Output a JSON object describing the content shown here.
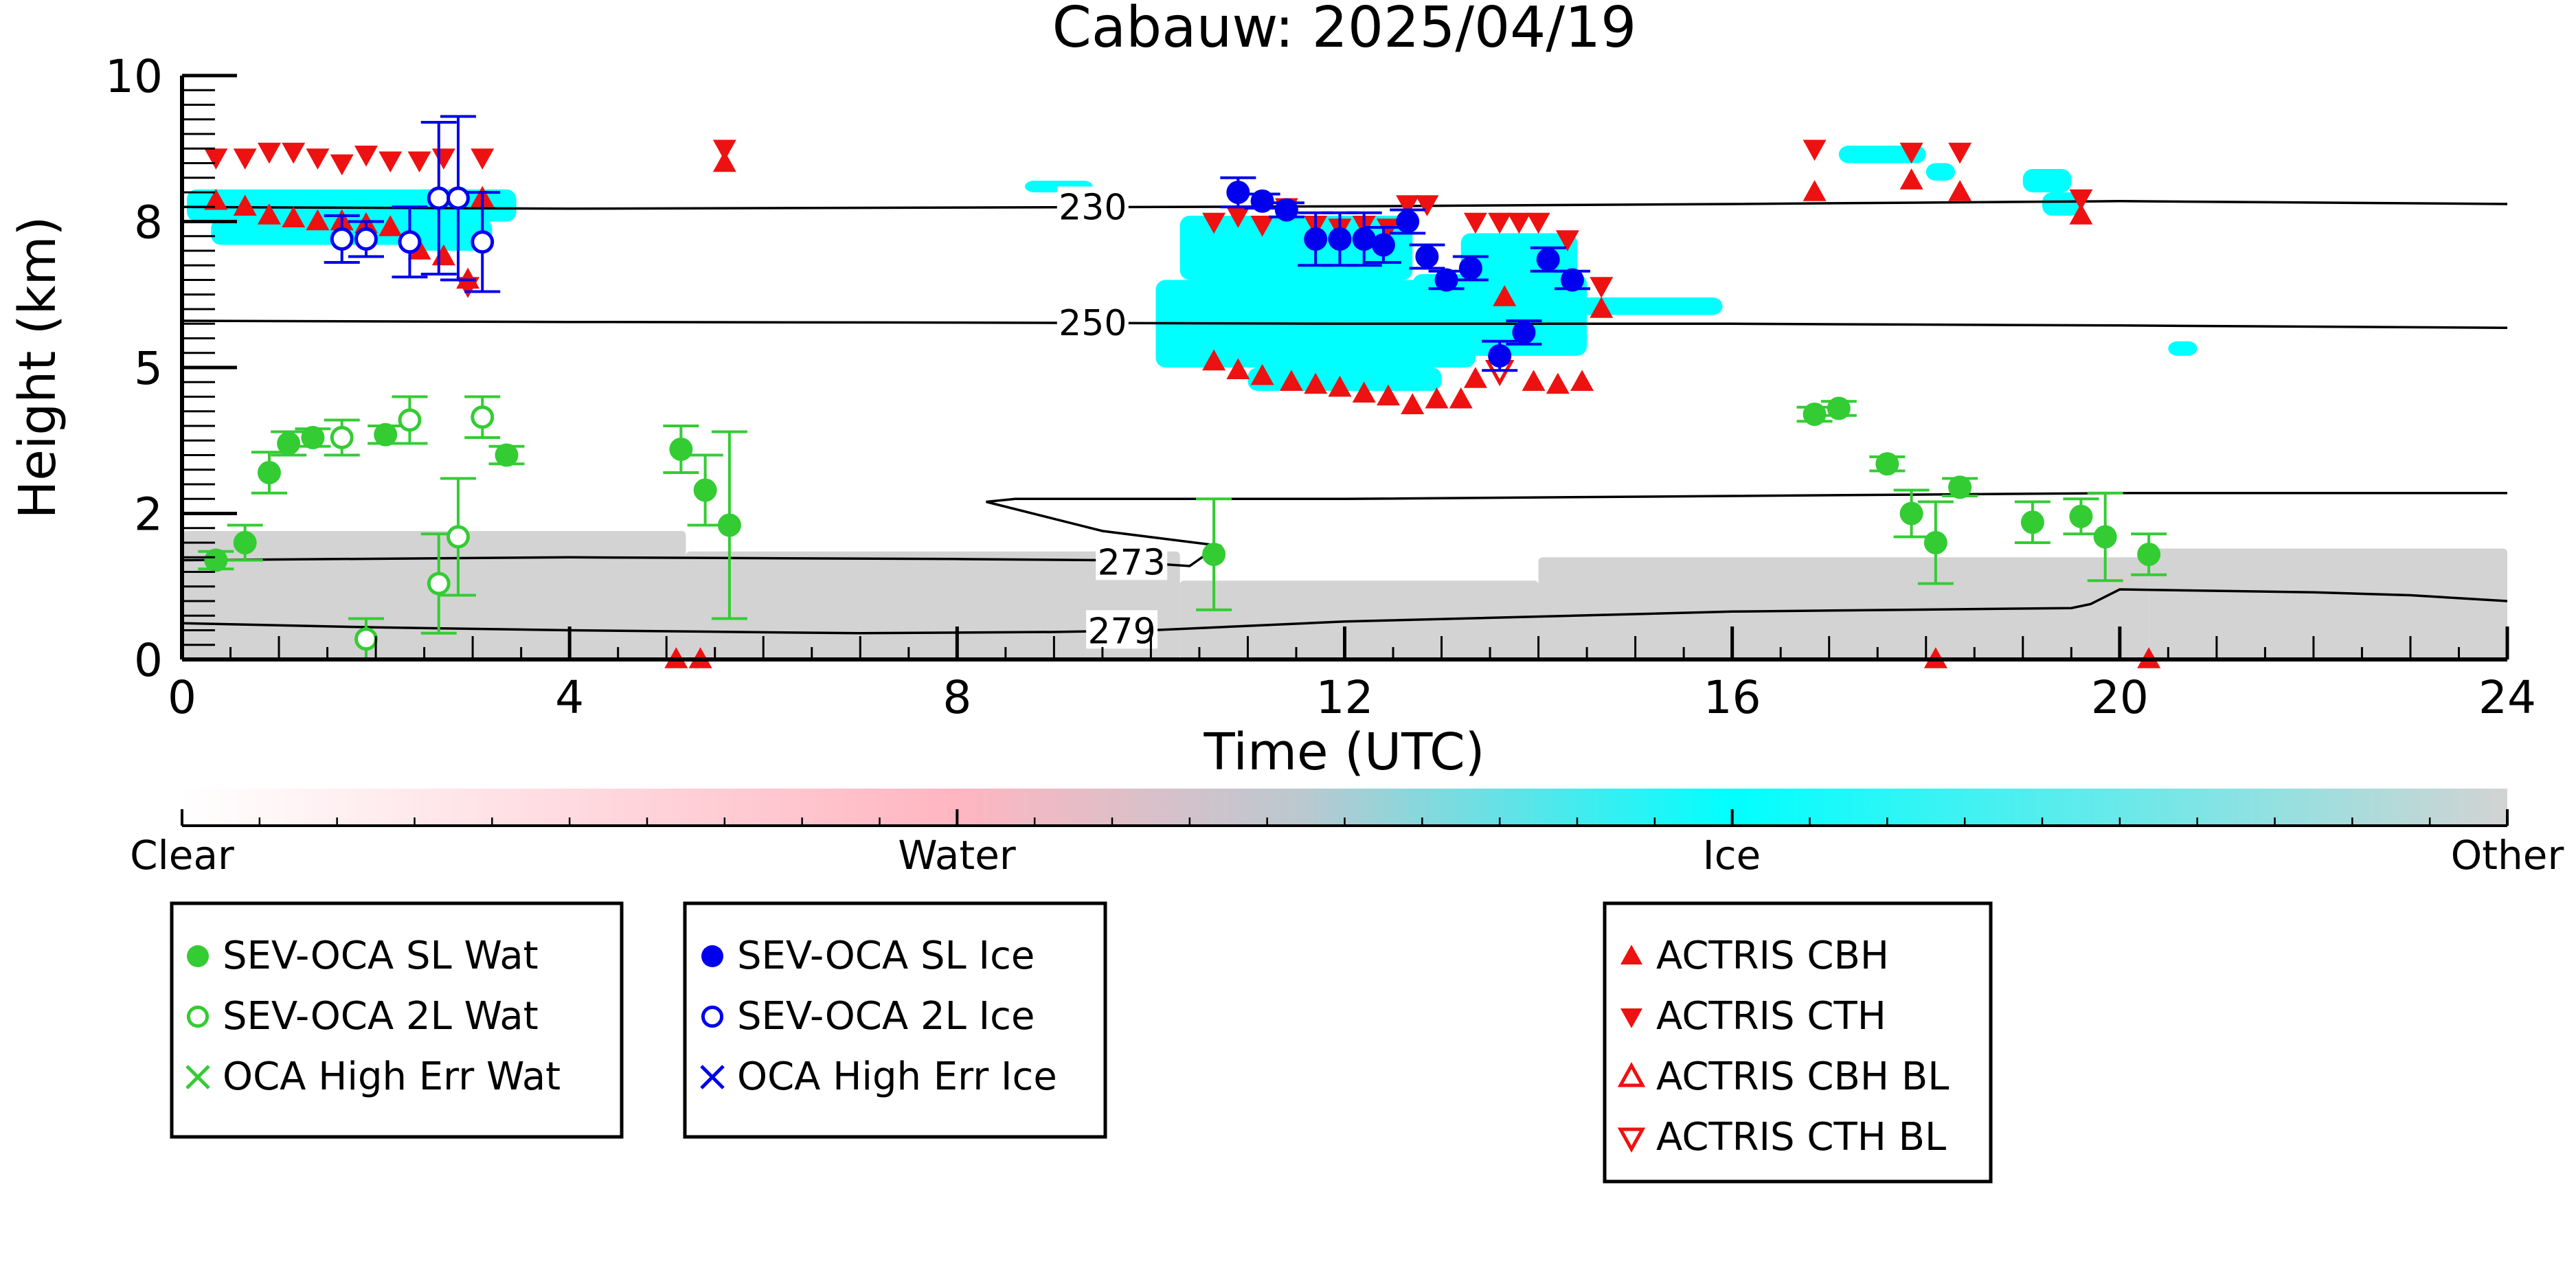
{
  "chart_data": {
    "type": "scatter",
    "title": "Cabauw: 2025/04/19",
    "xlabel": "Time (UTC)",
    "ylabel": "Height (km)",
    "xlim": [
      0,
      24
    ],
    "ylim": [
      0,
      10
    ],
    "x_ticks": [
      0,
      4,
      8,
      12,
      16,
      20,
      24
    ],
    "y_ticks": [
      {
        "label": "0",
        "value": 0
      },
      {
        "label": "2",
        "value": 2.5
      },
      {
        "label": "5",
        "value": 5
      },
      {
        "label": "8",
        "value": 7.5
      },
      {
        "label": "10",
        "value": 10
      }
    ],
    "colorbar": {
      "labels": [
        "Clear",
        "Water",
        "Ice",
        "Other"
      ],
      "colors": [
        "#ffffff",
        "#ffb6c1",
        "#00ffff",
        "#d3d3d3"
      ]
    },
    "colors": {
      "water": "#33cc33",
      "ice": "#0000ee",
      "actris": "#ee1111",
      "cloud_ice": "#00ffff",
      "cloud_other": "#d3d3d3"
    },
    "contours": [
      {
        "label": "230",
        "label_x": 9.4,
        "points": [
          [
            0,
            7.75
          ],
          [
            4,
            7.72
          ],
          [
            8,
            7.74
          ],
          [
            12,
            7.76
          ],
          [
            16,
            7.8
          ],
          [
            20,
            7.85
          ],
          [
            24,
            7.8
          ]
        ]
      },
      {
        "label": "250",
        "label_x": 9.4,
        "points": [
          [
            0,
            5.8
          ],
          [
            4,
            5.78
          ],
          [
            8,
            5.77
          ],
          [
            12,
            5.75
          ],
          [
            16,
            5.75
          ],
          [
            20,
            5.72
          ],
          [
            24,
            5.68
          ]
        ]
      },
      {
        "label": "273",
        "label_x": 9.8,
        "points": [
          [
            0,
            1.7
          ],
          [
            4,
            1.75
          ],
          [
            8,
            1.72
          ],
          [
            9.5,
            1.7
          ],
          [
            10.4,
            1.6
          ],
          [
            10.7,
            1.95
          ],
          [
            9.5,
            2.2
          ],
          [
            8.3,
            2.7
          ],
          [
            8.6,
            2.75
          ],
          [
            12,
            2.75
          ],
          [
            16,
            2.8
          ],
          [
            20,
            2.85
          ],
          [
            24,
            2.85
          ]
        ]
      },
      {
        "label": "279",
        "label_x": 9.7,
        "points": [
          [
            0,
            0.62
          ],
          [
            2,
            0.55
          ],
          [
            4,
            0.5
          ],
          [
            7,
            0.45
          ],
          [
            9,
            0.47
          ],
          [
            10,
            0.5
          ],
          [
            12,
            0.65
          ],
          [
            16,
            0.82
          ],
          [
            19.5,
            0.88
          ],
          [
            19.7,
            0.95
          ],
          [
            20,
            1.2
          ],
          [
            22,
            1.15
          ],
          [
            23,
            1.1
          ],
          [
            24,
            1.0
          ]
        ]
      }
    ],
    "ice_regions": [
      {
        "x": 0.05,
        "y": 7.5,
        "w": 3.4,
        "h": 0.55
      },
      {
        "x": 0.3,
        "y": 7.1,
        "w": 2.9,
        "h": 0.45
      },
      {
        "x": 2.4,
        "y": 7.0,
        "w": 0.7,
        "h": 0.5
      },
      {
        "x": 10.3,
        "y": 6.5,
        "w": 2.4,
        "h": 1.1
      },
      {
        "x": 10.05,
        "y": 5.0,
        "w": 3.3,
        "h": 1.5
      },
      {
        "x": 11.0,
        "y": 4.6,
        "w": 2.0,
        "h": 0.4
      },
      {
        "x": 12.7,
        "y": 5.2,
        "w": 1.8,
        "h": 1.4
      },
      {
        "x": 13.2,
        "y": 6.5,
        "w": 1.2,
        "h": 0.8
      },
      {
        "x": 14.3,
        "y": 5.9,
        "w": 1.6,
        "h": 0.3
      },
      {
        "x": 17.1,
        "y": 8.5,
        "w": 0.9,
        "h": 0.3
      },
      {
        "x": 18.0,
        "y": 8.2,
        "w": 0.3,
        "h": 0.3
      },
      {
        "x": 19.0,
        "y": 8.0,
        "w": 0.5,
        "h": 0.4
      },
      {
        "x": 19.2,
        "y": 7.6,
        "w": 0.4,
        "h": 0.4
      },
      {
        "x": 8.7,
        "y": 8.0,
        "w": 0.7,
        "h": 0.2
      },
      {
        "x": 20.5,
        "y": 5.2,
        "w": 0.3,
        "h": 0.25
      }
    ],
    "other_regions": [
      {
        "x": 0.0,
        "y": 0.0,
        "w": 5.2,
        "h": 2.2
      },
      {
        "x": 5.2,
        "y": 0.0,
        "w": 5.1,
        "h": 1.85
      },
      {
        "x": 10.3,
        "y": 0.0,
        "w": 3.7,
        "h": 1.35
      },
      {
        "x": 14.0,
        "y": 0.0,
        "w": 6.3,
        "h": 1.75
      },
      {
        "x": 20.3,
        "y": 0.0,
        "w": 3.7,
        "h": 1.9
      }
    ],
    "series": [
      {
        "name": "SEV-OCA SL Wat",
        "marker": "filled-circle",
        "color": "#33cc33",
        "points": [
          [
            0.35,
            1.7,
            0.15
          ],
          [
            0.65,
            2.0,
            0.3
          ],
          [
            0.9,
            3.2,
            0.35
          ],
          [
            1.1,
            3.7,
            0.2
          ],
          [
            1.35,
            3.8,
            0.15
          ],
          [
            2.1,
            3.85,
            0.15
          ],
          [
            3.35,
            3.5,
            0.15
          ],
          [
            5.15,
            3.6,
            0.4
          ],
          [
            5.4,
            2.9,
            0.6
          ],
          [
            5.65,
            2.3,
            1.6
          ],
          [
            10.65,
            1.8,
            0.95
          ],
          [
            16.85,
            4.2,
            0.12
          ],
          [
            17.1,
            4.3,
            0.12
          ],
          [
            17.6,
            3.35,
            0.12
          ],
          [
            17.85,
            2.5,
            0.4
          ],
          [
            18.1,
            2.0,
            0.7
          ],
          [
            18.35,
            2.95,
            0.15
          ],
          [
            19.1,
            2.35,
            0.35
          ],
          [
            19.6,
            2.45,
            0.3
          ],
          [
            19.85,
            2.1,
            0.75
          ],
          [
            20.3,
            1.8,
            0.35
          ]
        ]
      },
      {
        "name": "SEV-OCA 2L Wat",
        "marker": "open-circle",
        "color": "#33cc33",
        "points": [
          [
            1.65,
            3.8,
            0.3
          ],
          [
            1.9,
            0.35,
            0.35
          ],
          [
            2.35,
            4.1,
            0.4
          ],
          [
            2.65,
            1.3,
            0.85
          ],
          [
            2.85,
            2.1,
            1.0
          ],
          [
            3.1,
            4.15,
            0.35
          ]
        ]
      },
      {
        "name": "OCA High Err Wat",
        "marker": "cross",
        "color": "#33cc33",
        "points": []
      },
      {
        "name": "SEV-OCA SL Ice",
        "marker": "filled-circle",
        "color": "#0000ee",
        "points": [
          [
            10.9,
            8.0,
            0.25
          ],
          [
            11.15,
            7.85,
            0.12
          ],
          [
            11.4,
            7.7,
            0.12
          ],
          [
            11.7,
            7.2,
            0.45
          ],
          [
            11.95,
            7.2,
            0.45
          ],
          [
            12.2,
            7.2,
            0.45
          ],
          [
            12.4,
            7.1,
            0.3
          ],
          [
            12.65,
            7.5,
            0.2
          ],
          [
            12.85,
            6.9,
            0.2
          ],
          [
            13.05,
            6.5,
            0.15
          ],
          [
            13.3,
            6.7,
            0.2
          ],
          [
            13.6,
            5.2,
            0.25
          ],
          [
            13.85,
            5.6,
            0.2
          ],
          [
            14.1,
            6.85,
            0.2
          ],
          [
            14.35,
            6.5,
            0.15
          ]
        ]
      },
      {
        "name": "SEV-OCA 2L Ice",
        "marker": "open-circle",
        "color": "#0000ee",
        "points": [
          [
            1.65,
            7.2,
            0.4
          ],
          [
            1.9,
            7.2,
            0.3
          ],
          [
            2.35,
            7.15,
            0.6
          ],
          [
            2.65,
            7.9,
            1.3
          ],
          [
            2.85,
            7.9,
            1.4
          ],
          [
            3.1,
            7.15,
            0.85
          ]
        ]
      },
      {
        "name": "OCA High Err Ice",
        "marker": "cross",
        "color": "#0000ee",
        "points": []
      }
    ],
    "actris": [
      {
        "name": "ACTRIS CBH",
        "marker": "triangle-up",
        "color": "#ee1111",
        "points": [
          [
            0.35,
            7.85
          ],
          [
            0.65,
            7.75
          ],
          [
            0.9,
            7.6
          ],
          [
            1.15,
            7.55
          ],
          [
            1.4,
            7.5
          ],
          [
            1.65,
            7.5
          ],
          [
            1.9,
            7.45
          ],
          [
            2.15,
            7.4
          ],
          [
            2.45,
            7.0
          ],
          [
            2.7,
            6.9
          ],
          [
            2.95,
            6.5
          ],
          [
            3.1,
            7.9
          ],
          [
            5.6,
            8.5
          ],
          [
            10.65,
            5.1
          ],
          [
            10.9,
            4.95
          ],
          [
            11.15,
            4.85
          ],
          [
            11.45,
            4.75
          ],
          [
            11.7,
            4.7
          ],
          [
            11.95,
            4.65
          ],
          [
            12.2,
            4.55
          ],
          [
            12.45,
            4.5
          ],
          [
            12.7,
            4.35
          ],
          [
            12.95,
            4.45
          ],
          [
            13.2,
            4.45
          ],
          [
            13.35,
            4.8
          ],
          [
            13.65,
            6.2
          ],
          [
            13.95,
            4.75
          ],
          [
            14.2,
            4.7
          ],
          [
            14.45,
            4.75
          ],
          [
            14.65,
            6.0
          ],
          [
            16.85,
            8.0
          ],
          [
            17.85,
            8.2
          ],
          [
            18.35,
            8.0
          ],
          [
            19.6,
            7.6
          ],
          [
            18.1,
            0.0
          ],
          [
            20.3,
            0.0
          ],
          [
            5.1,
            0.0
          ],
          [
            5.35,
            0.0
          ]
        ]
      },
      {
        "name": "ACTRIS CTH",
        "marker": "triangle-down",
        "color": "#ee1111",
        "points": [
          [
            0.35,
            8.6
          ],
          [
            0.65,
            8.6
          ],
          [
            0.9,
            8.7
          ],
          [
            1.15,
            8.7
          ],
          [
            1.4,
            8.6
          ],
          [
            1.65,
            8.5
          ],
          [
            1.9,
            8.65
          ],
          [
            2.15,
            8.55
          ],
          [
            2.45,
            8.55
          ],
          [
            2.7,
            8.6
          ],
          [
            2.95,
            6.4
          ],
          [
            3.1,
            8.6
          ],
          [
            5.6,
            8.75
          ],
          [
            10.65,
            7.5
          ],
          [
            10.9,
            7.6
          ],
          [
            11.15,
            7.45
          ],
          [
            11.4,
            7.75
          ],
          [
            11.7,
            7.45
          ],
          [
            11.95,
            7.4
          ],
          [
            12.2,
            7.45
          ],
          [
            12.45,
            7.4
          ],
          [
            12.65,
            7.8
          ],
          [
            12.85,
            7.8
          ],
          [
            13.35,
            7.5
          ],
          [
            13.6,
            7.5
          ],
          [
            13.8,
            7.5
          ],
          [
            14.0,
            7.5
          ],
          [
            14.3,
            7.2
          ],
          [
            14.65,
            6.4
          ],
          [
            16.85,
            8.75
          ],
          [
            17.85,
            8.7
          ],
          [
            18.35,
            8.7
          ],
          [
            19.6,
            7.9
          ]
        ]
      },
      {
        "name": "ACTRIS CBH BL",
        "marker": "open-triangle-up",
        "color": "#ee1111",
        "points": []
      },
      {
        "name": "ACTRIS CTH BL",
        "marker": "open-triangle-down",
        "color": "#ee1111",
        "points": [
          [
            13.6,
            4.95
          ]
        ]
      }
    ],
    "legend_water": [
      "SEV-OCA SL Wat",
      "SEV-OCA 2L Wat",
      "OCA High Err Wat"
    ],
    "legend_ice": [
      "SEV-OCA SL Ice",
      "SEV-OCA 2L Ice",
      "OCA High Err Ice"
    ],
    "legend_actris": [
      "ACTRIS CBH",
      "ACTRIS CTH",
      "ACTRIS CBH BL",
      "ACTRIS CTH BL"
    ]
  }
}
